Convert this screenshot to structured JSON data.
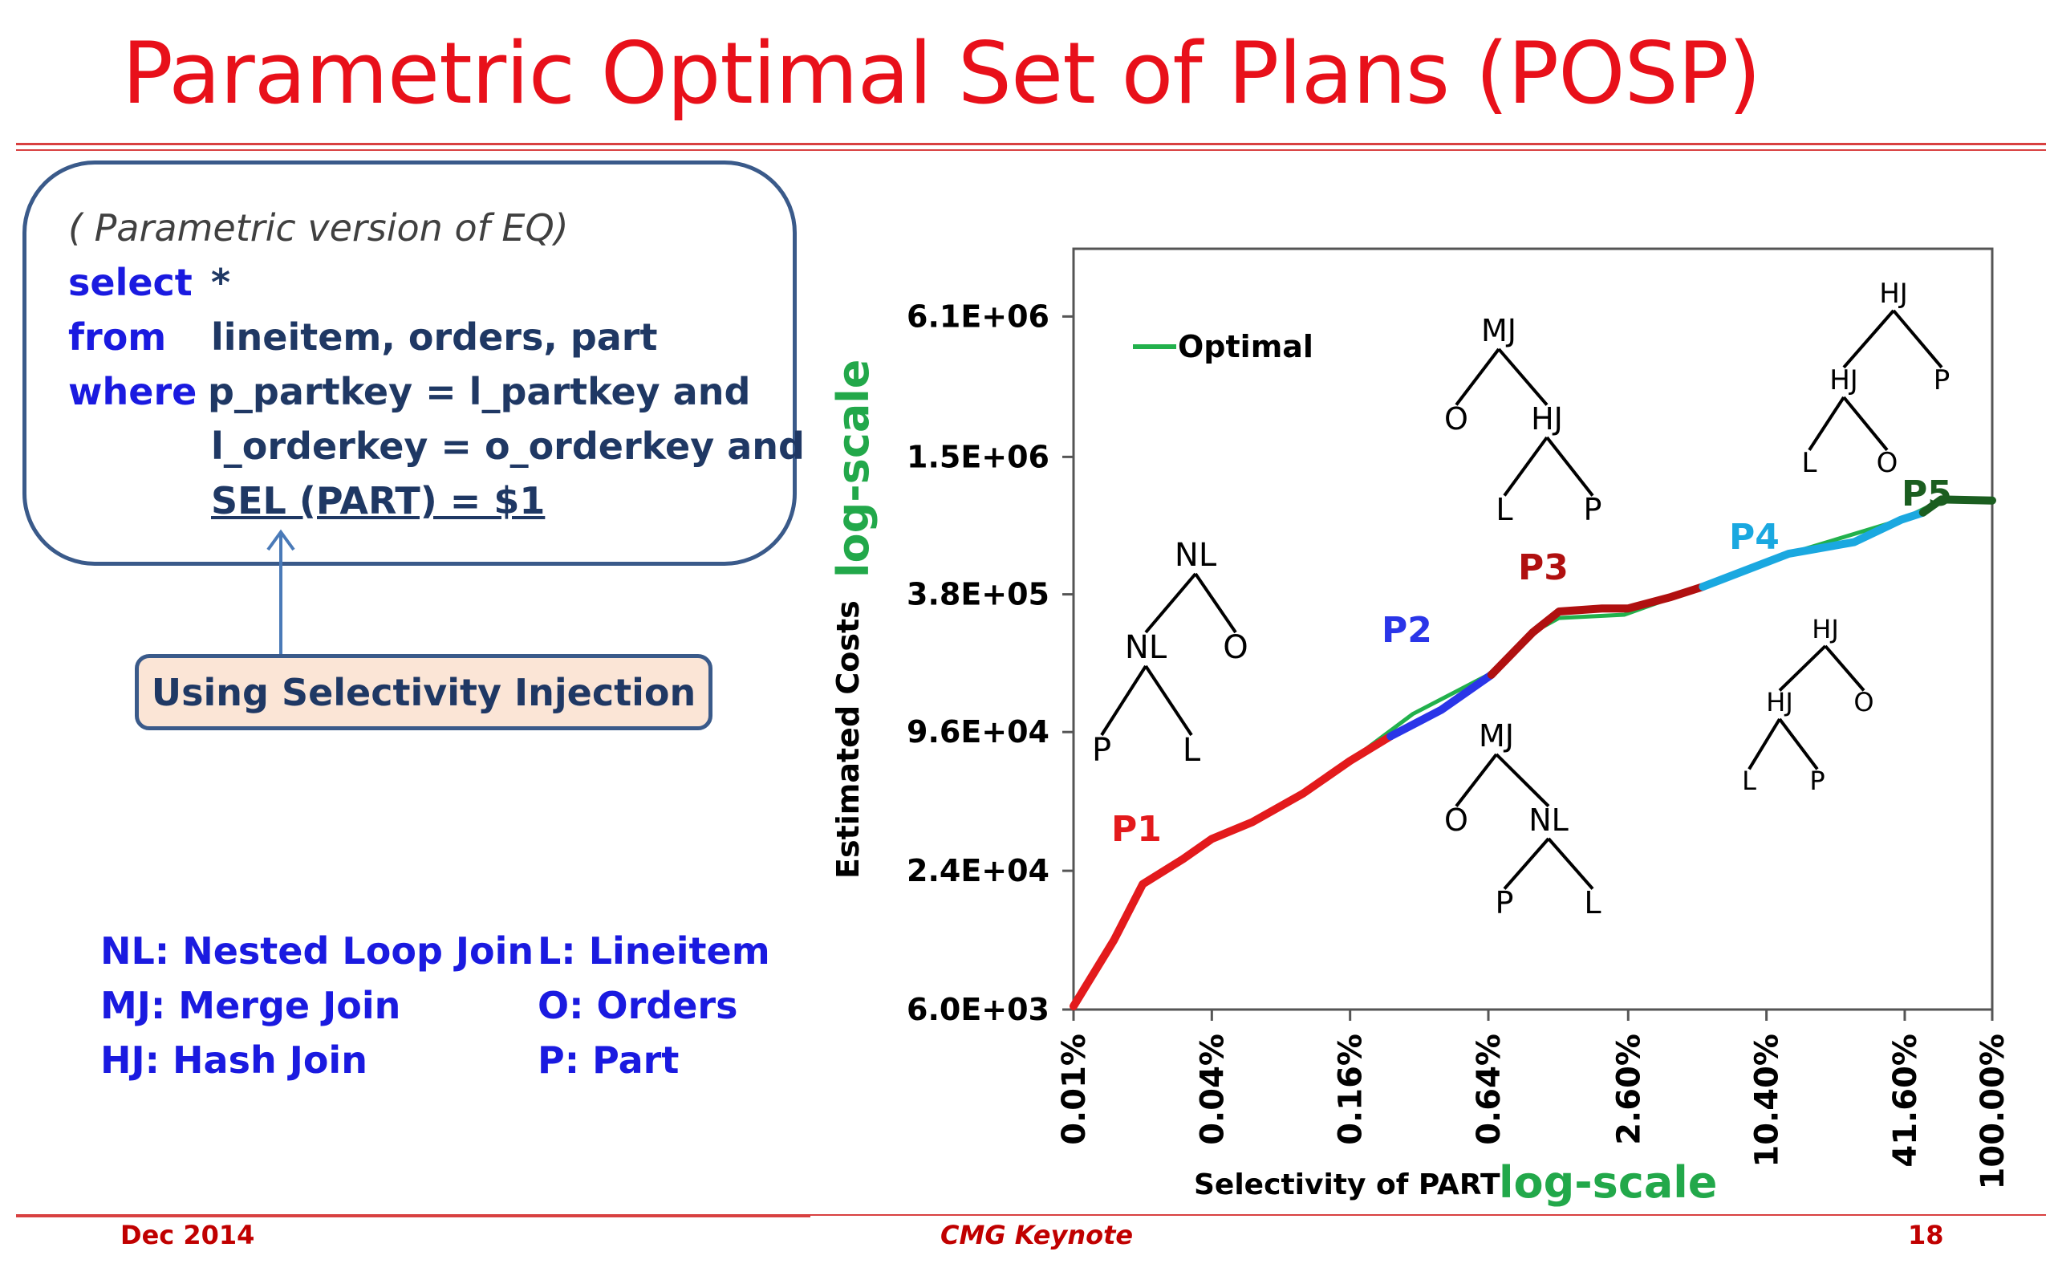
{
  "slide": {
    "title": "Parametric Optimal Set of Plans (POSP)"
  },
  "query": {
    "comment": "( Parametric version of EQ)",
    "select_kw": "select",
    "select_val": "*",
    "from_kw": "from",
    "from_val": "lineitem, orders, part",
    "where_kw": "where",
    "where_line1": "p_partkey = l_partkey and",
    "where_line2": "l_orderkey = o_orderkey and",
    "where_line3": "SEL (PART) = $1"
  },
  "injection_label": "Using Selectivity Injection",
  "legend_terms": {
    "nl": "NL: Nested Loop Join",
    "mj": "MJ: Merge Join",
    "hj": "HJ: Hash Join",
    "l": "L:  Lineitem",
    "o": "O: Orders",
    "p": "P:  Part"
  },
  "chart_data": {
    "type": "line",
    "xlabel": "Selectivity of PART",
    "ylabel": "Estimated Costs",
    "x_scale_note": "log-scale",
    "y_scale_note": "log-scale",
    "x_scale": "log",
    "y_scale": "log",
    "x_ticks": [
      {
        "value": 0.01,
        "label": "0.01%"
      },
      {
        "value": 0.04,
        "label": "0.04%"
      },
      {
        "value": 0.16,
        "label": "0.16%"
      },
      {
        "value": 0.64,
        "label": "0.64%"
      },
      {
        "value": 2.6,
        "label": "2.60%"
      },
      {
        "value": 10.4,
        "label": "10.40%"
      },
      {
        "value": 41.6,
        "label": "41.60%"
      },
      {
        "value": 100,
        "label": "100.00%"
      }
    ],
    "y_ticks": [
      {
        "value": 6000,
        "label": "6.0E+03"
      },
      {
        "value": 24000,
        "label": "2.4E+04"
      },
      {
        "value": 96000,
        "label": "9.6E+04"
      },
      {
        "value": 380000,
        "label": "3.8E+05"
      },
      {
        "value": 1500000,
        "label": "1.5E+06"
      },
      {
        "value": 6100000,
        "label": "6.1E+06"
      }
    ],
    "xlim": [
      0.01,
      100
    ],
    "ylim": [
      6000,
      12000000
    ],
    "grid": false,
    "legend": {
      "position": "top-left",
      "label": "Optimal",
      "color": "#22b14c"
    },
    "optimal": [
      [
        0.01,
        6200
      ],
      [
        0.015,
        12000
      ],
      [
        0.02,
        21000
      ],
      [
        0.03,
        27000
      ],
      [
        0.04,
        33000
      ],
      [
        0.06,
        39000
      ],
      [
        0.1,
        52000
      ],
      [
        0.16,
        72000
      ],
      [
        0.3,
        115000
      ],
      [
        0.64,
        170000
      ],
      [
        1.0,
        260000
      ],
      [
        1.3,
        300000
      ],
      [
        2.5,
        310000
      ],
      [
        5.5,
        410000
      ],
      [
        13,
        570000
      ],
      [
        40,
        800000
      ],
      [
        60,
        970000
      ],
      [
        100,
        970000
      ]
    ],
    "series": [
      {
        "name": "P1",
        "color": "#e31a1c",
        "x": [
          0.01,
          0.015,
          0.02,
          0.03,
          0.04,
          0.06,
          0.1,
          0.16,
          0.24
        ],
        "y": [
          6200,
          12000,
          21000,
          27000,
          33000,
          39000,
          52000,
          72000,
          92000
        ]
      },
      {
        "name": "P2",
        "color": "#2a35e8",
        "x": [
          0.24,
          0.4,
          0.66
        ],
        "y": [
          92000,
          120000,
          170000
        ]
      },
      {
        "name": "P3",
        "color": "#b01010",
        "x": [
          0.66,
          1.0,
          1.3,
          2.0,
          2.6,
          4.0,
          5.5
        ],
        "y": [
          170000,
          260000,
          320000,
          330000,
          330000,
          370000,
          410000
        ]
      },
      {
        "name": "P4",
        "color": "#1aa8e0",
        "x": [
          5.5,
          13,
          25,
          40,
          50
        ],
        "y": [
          410000,
          570000,
          640000,
          800000,
          860000
        ]
      },
      {
        "name": "P5",
        "color": "#1b5e20",
        "x": [
          50,
          60,
          100
        ],
        "y": [
          860000,
          980000,
          970000
        ]
      }
    ],
    "plan_labels": [
      {
        "text": "P1",
        "color": "#e31a1c"
      },
      {
        "text": "P2",
        "color": "#2a35e8"
      },
      {
        "text": "P3",
        "color": "#b01010"
      },
      {
        "text": "P4",
        "color": "#1aa8e0"
      },
      {
        "text": "P5",
        "color": "#1b5e20"
      }
    ],
    "plan_trees": [
      {
        "nodes": [
          "NL",
          "NL",
          "O",
          "P",
          "L"
        ]
      },
      {
        "nodes": [
          "MJ",
          "O",
          "HJ",
          "L",
          "P"
        ]
      },
      {
        "nodes": [
          "HJ",
          "HJ",
          "P",
          "L",
          "O"
        ]
      },
      {
        "nodes": [
          "HJ",
          "HJ",
          "O",
          "L",
          "P"
        ]
      },
      {
        "nodes": [
          "MJ",
          "O",
          "NL",
          "P",
          "L"
        ]
      }
    ]
  },
  "footer": {
    "date": "Dec 2014",
    "event": "CMG Keynote",
    "page": "18"
  }
}
